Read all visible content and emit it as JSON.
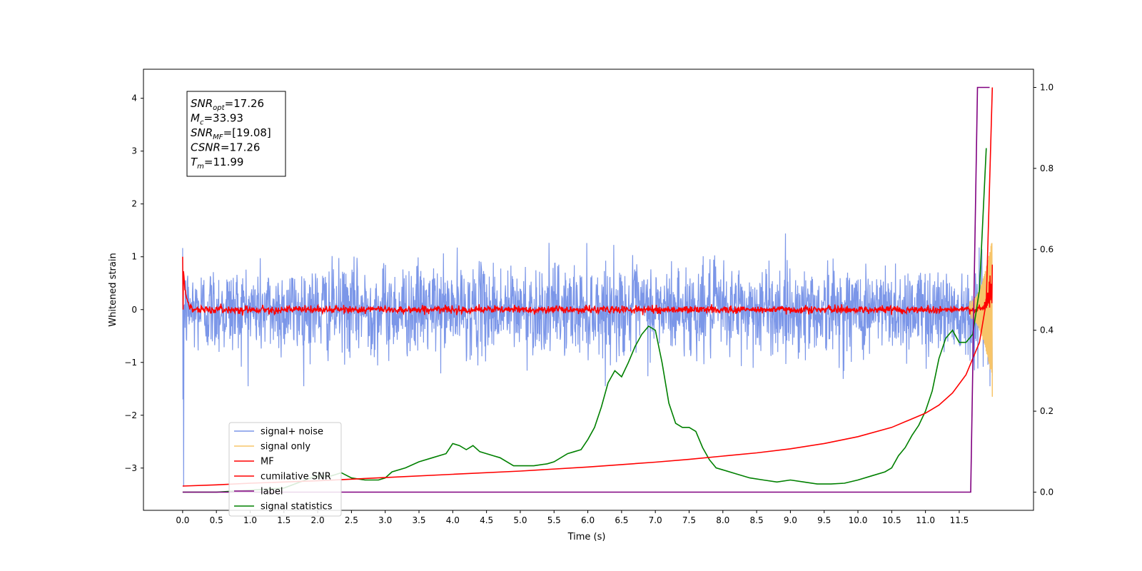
{
  "chart_data": {
    "type": "line",
    "xlabel": "Time (s)",
    "ylabel_left": "Whitened strain",
    "ylabel_right": "",
    "xlim": [
      -0.58,
      12.6
    ],
    "ylim_left": [
      -3.8,
      4.55
    ],
    "ylim_right": [
      -0.045,
      1.045
    ],
    "x_ticks": [
      "0.0",
      "0.5",
      "1.0",
      "1.5",
      "2.0",
      "2.5",
      "3.0",
      "3.5",
      "4.0",
      "4.5",
      "5.0",
      "5.5",
      "6.0",
      "6.5",
      "7.0",
      "7.5",
      "8.0",
      "8.5",
      "9.0",
      "9.5",
      "10.0",
      "10.5",
      "11.0",
      "11.5"
    ],
    "x_tick_values": [
      0,
      0.5,
      1,
      1.5,
      2,
      2.5,
      3,
      3.5,
      4,
      4.5,
      5,
      5.5,
      6,
      6.5,
      7,
      7.5,
      8,
      8.5,
      9,
      9.5,
      10,
      10.5,
      11,
      11.5
    ],
    "y_ticks_left": [
      "−3",
      "−2",
      "−1",
      "0",
      "1",
      "2",
      "3",
      "4"
    ],
    "y_tick_values_left": [
      -3,
      -2,
      -1,
      0,
      1,
      2,
      3,
      4
    ],
    "y_ticks_right": [
      "0.0",
      "0.2",
      "0.4",
      "0.6",
      "0.8",
      "1.0"
    ],
    "y_tick_values_right": [
      0,
      0.2,
      0.4,
      0.6,
      0.8,
      1.0
    ],
    "grid": false,
    "legend_position": "lower-left",
    "legend": [
      {
        "label": "signal+ noise",
        "color": "#7b96e8"
      },
      {
        "label": "signal only",
        "color": "#f7c56a"
      },
      {
        "label": "MF",
        "color": "#ff0000"
      },
      {
        "label": "cumilative SNR",
        "color": "#ff0000"
      },
      {
        "label": "label",
        "color": "#800080"
      },
      {
        "label": "signal statistics",
        "color": "#008000"
      }
    ],
    "annotation": [
      {
        "sym": "SNR",
        "sub": "opt",
        "value": "=17.26"
      },
      {
        "sym": "M",
        "sub": "c",
        "value": "=33.93"
      },
      {
        "sym": "SNR",
        "sub": "MF",
        "value": "=[19.08]"
      },
      {
        "sym": "CSNR",
        "sub": "",
        "value": "=17.26"
      },
      {
        "sym": "T",
        "sub": "m",
        "value": "=11.99"
      }
    ],
    "series": [
      {
        "name": "signal+ noise",
        "axis": "left",
        "color": "#7b96e8",
        "x_range": [
          0.0,
          11.99
        ],
        "noise_amplitude": 0.42,
        "envelope_peak_max": 1.55,
        "envelope_peak_min": -1.45
      },
      {
        "name": "signal only",
        "axis": "left",
        "color": "#f7c56a",
        "x_range": [
          11.65,
          11.99
        ],
        "y_end": -1.65,
        "y_max": 1.2
      },
      {
        "name": "MF",
        "axis": "left",
        "color": "#ff0000",
        "x_range": [
          0.0,
          11.99
        ],
        "y_start": 1.0,
        "y_baseline": 0.0,
        "y_end": 0.85
      },
      {
        "name": "cumilative SNR",
        "axis": "right",
        "color": "#ff0000",
        "x": [
          0.0,
          0.5,
          1,
          2,
          3,
          4,
          5,
          6,
          7,
          7.5,
          8,
          8.5,
          9,
          9.5,
          10,
          10.5,
          11,
          11.2,
          11.4,
          11.6,
          11.8,
          11.9,
          11.99
        ],
        "y": [
          0.015,
          0.018,
          0.022,
          0.028,
          0.036,
          0.044,
          0.052,
          0.062,
          0.074,
          0.081,
          0.089,
          0.097,
          0.107,
          0.12,
          0.137,
          0.16,
          0.195,
          0.215,
          0.245,
          0.29,
          0.37,
          0.47,
          1.0
        ]
      },
      {
        "name": "label",
        "axis": "right",
        "color": "#800080",
        "x": [
          0.0,
          11.67,
          11.77,
          11.95
        ],
        "y": [
          0.0,
          0.0,
          1.0,
          1.0
        ]
      },
      {
        "name": "signal statistics",
        "axis": "right",
        "color": "#008000",
        "x": [
          0,
          0.5,
          1.0,
          1.5,
          1.9,
          2.0,
          2.2,
          2.35,
          2.5,
          2.7,
          2.9,
          3.0,
          3.1,
          3.3,
          3.5,
          3.7,
          3.9,
          4.0,
          4.1,
          4.2,
          4.3,
          4.4,
          4.5,
          4.6,
          4.7,
          4.9,
          5.0,
          5.2,
          5.4,
          5.5,
          5.7,
          5.8,
          5.9,
          6.0,
          6.1,
          6.2,
          6.3,
          6.4,
          6.5,
          6.6,
          6.7,
          6.8,
          6.9,
          7.0,
          7.1,
          7.2,
          7.3,
          7.4,
          7.5,
          7.6,
          7.7,
          7.8,
          7.9,
          8.0,
          8.2,
          8.4,
          8.6,
          8.8,
          9.0,
          9.2,
          9.4,
          9.6,
          9.8,
          10.0,
          10.2,
          10.4,
          10.5,
          10.6,
          10.7,
          10.8,
          10.9,
          11.0,
          11.1,
          11.2,
          11.3,
          11.4,
          11.5,
          11.6,
          11.7,
          11.8,
          11.9
        ],
        "y": [
          0.0,
          0.0,
          0.005,
          0.01,
          0.035,
          0.04,
          0.04,
          0.048,
          0.035,
          0.03,
          0.03,
          0.035,
          0.05,
          0.06,
          0.075,
          0.085,
          0.095,
          0.12,
          0.115,
          0.105,
          0.115,
          0.1,
          0.095,
          0.09,
          0.085,
          0.065,
          0.065,
          0.065,
          0.07,
          0.075,
          0.095,
          0.1,
          0.105,
          0.13,
          0.16,
          0.21,
          0.27,
          0.3,
          0.285,
          0.32,
          0.36,
          0.39,
          0.41,
          0.4,
          0.32,
          0.22,
          0.17,
          0.16,
          0.16,
          0.15,
          0.11,
          0.08,
          0.06,
          0.055,
          0.045,
          0.035,
          0.03,
          0.025,
          0.03,
          0.025,
          0.02,
          0.02,
          0.022,
          0.03,
          0.04,
          0.05,
          0.06,
          0.09,
          0.11,
          0.14,
          0.165,
          0.2,
          0.25,
          0.33,
          0.38,
          0.4,
          0.37,
          0.37,
          0.39,
          0.5,
          0.85
        ]
      }
    ]
  }
}
